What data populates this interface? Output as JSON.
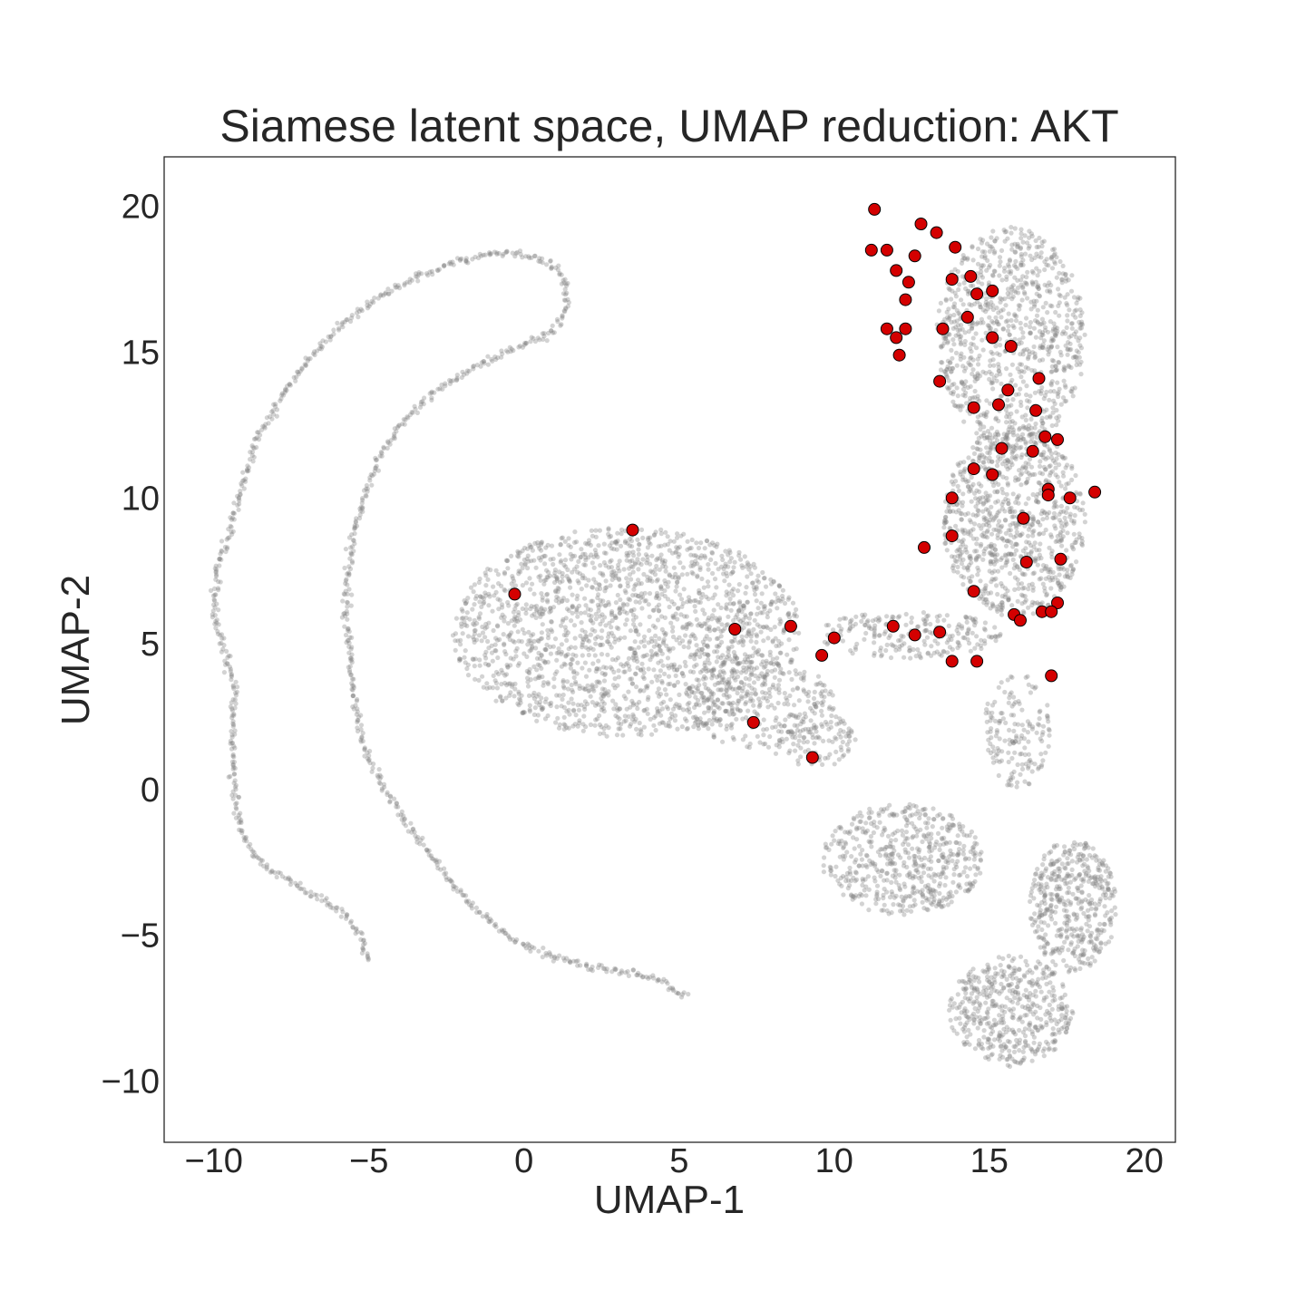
{
  "chart_data": {
    "type": "scatter",
    "title": "Siamese latent space, UMAP reduction: AKT",
    "xlabel": "UMAP-1",
    "ylabel": "UMAP-2",
    "xlim": [
      -11.6,
      21.0
    ],
    "ylim": [
      -12.1,
      21.7
    ],
    "xticks": [
      -10,
      -5,
      0,
      5,
      10,
      15,
      20
    ],
    "yticks": [
      -10,
      -5,
      0,
      5,
      10,
      15,
      20
    ],
    "xtick_labels": [
      "−10",
      "−5",
      "0",
      "5",
      "10",
      "15",
      "20"
    ],
    "ytick_labels": [
      "−10",
      "−5",
      "0",
      "5",
      "10",
      "15",
      "20"
    ],
    "grid": false,
    "background": {
      "color": "#808080",
      "opacity": 0.35,
      "description_points": "dense UMAP embedding of all compounds",
      "curves": [
        [
          [
            -5.0,
            -5.9
          ],
          [
            -5.2,
            -5.2
          ],
          [
            -5.5,
            -4.6
          ],
          [
            -6.0,
            -4.1
          ],
          [
            -7.3,
            -3.3
          ],
          [
            -8.3,
            -2.7
          ],
          [
            -8.9,
            -2.0
          ],
          [
            -9.2,
            -1.0
          ],
          [
            -9.4,
            0.5
          ],
          [
            -9.4,
            1.8
          ],
          [
            -9.3,
            3.3
          ],
          [
            -9.6,
            4.6
          ],
          [
            -9.9,
            5.5
          ],
          [
            -10.0,
            6.6
          ],
          [
            -9.9,
            7.6
          ],
          [
            -9.5,
            8.7
          ],
          [
            -9.2,
            10.0
          ],
          [
            -8.9,
            11.0
          ],
          [
            -8.6,
            12.1
          ],
          [
            -7.9,
            13.3
          ],
          [
            -7.0,
            14.7
          ],
          [
            -5.9,
            15.9
          ],
          [
            -4.8,
            16.8
          ],
          [
            -3.4,
            17.6
          ],
          [
            -2.1,
            18.1
          ],
          [
            -1.0,
            18.4
          ],
          [
            -0.5,
            18.4
          ]
        ],
        [
          [
            -0.5,
            18.4
          ],
          [
            0.3,
            18.3
          ],
          [
            0.9,
            18.0
          ],
          [
            1.3,
            17.6
          ],
          [
            1.4,
            16.8
          ],
          [
            1.2,
            16.1
          ],
          [
            0.6,
            15.5
          ],
          [
            -0.6,
            15.0
          ],
          [
            -1.6,
            14.5
          ],
          [
            -2.9,
            13.6
          ],
          [
            -4.0,
            12.5
          ],
          [
            -4.7,
            11.3
          ],
          [
            -5.1,
            10.2
          ],
          [
            -5.5,
            8.7
          ],
          [
            -5.7,
            7.3
          ],
          [
            -5.7,
            5.7
          ],
          [
            -5.6,
            4.3
          ],
          [
            -5.5,
            3.0
          ],
          [
            -5.2,
            1.5
          ],
          [
            -4.6,
            0.2
          ],
          [
            -3.7,
            -1.3
          ],
          [
            -2.7,
            -2.7
          ],
          [
            -1.7,
            -4.0
          ],
          [
            -0.4,
            -5.1
          ],
          [
            0.8,
            -5.7
          ],
          [
            2.3,
            -6.1
          ],
          [
            3.5,
            -6.3
          ],
          [
            4.5,
            -6.6
          ],
          [
            5.0,
            -7.0
          ],
          [
            5.3,
            -7.0
          ]
        ]
      ],
      "blobs": [
        {
          "cx": 3.3,
          "cy": 5.4,
          "rx": 5.6,
          "ry": 3.6,
          "count": 1900
        },
        {
          "cx": 7.6,
          "cy": 3.0,
          "rx": 2.4,
          "ry": 1.6,
          "count": 260
        },
        {
          "cx": 9.3,
          "cy": 1.7,
          "rx": 1.4,
          "ry": 1.0,
          "count": 110
        },
        {
          "cx": 15.7,
          "cy": 15.5,
          "rx": 2.4,
          "ry": 3.8,
          "count": 900
        },
        {
          "cx": 15.8,
          "cy": 9.2,
          "rx": 2.3,
          "ry": 3.3,
          "count": 900
        },
        {
          "cx": 12.4,
          "cy": 5.3,
          "rx": 3.0,
          "ry": 0.8,
          "count": 220
        },
        {
          "cx": 15.9,
          "cy": 2.0,
          "rx": 1.1,
          "ry": 2.0,
          "count": 160
        },
        {
          "cx": 12.2,
          "cy": -2.4,
          "rx": 2.6,
          "ry": 1.9,
          "count": 550
        },
        {
          "cx": 17.7,
          "cy": -4.0,
          "rx": 1.4,
          "ry": 2.3,
          "count": 450
        },
        {
          "cx": 15.7,
          "cy": -7.6,
          "rx": 2.0,
          "ry": 1.9,
          "count": 480
        }
      ]
    },
    "series": [
      {
        "color": "#d40000",
        "edgecolor": "#000000",
        "x": [
          11.3,
          12.8,
          13.3,
          13.9,
          11.2,
          11.7,
          12.6,
          12.0,
          12.4,
          13.8,
          14.4,
          14.6,
          15.1,
          12.3,
          11.7,
          12.3,
          12.0,
          13.5,
          14.3,
          15.1,
          15.7,
          12.1,
          13.4,
          16.6,
          15.6,
          14.5,
          15.3,
          16.5,
          16.8,
          17.2,
          15.4,
          16.4,
          14.5,
          15.1,
          16.9,
          16.9,
          17.6,
          18.4,
          13.8,
          16.1,
          13.8,
          12.9,
          16.2,
          17.3,
          14.5,
          17.2,
          16.7,
          15.8,
          17.0,
          16.0,
          11.9,
          12.6,
          13.4,
          14.6,
          13.8,
          17.0,
          -0.3,
          3.5,
          6.8,
          8.6,
          10.0,
          9.6,
          7.4,
          9.3
        ],
        "y": [
          19.9,
          19.4,
          19.1,
          18.6,
          18.5,
          18.5,
          18.3,
          17.8,
          17.4,
          17.5,
          17.6,
          17.0,
          17.1,
          16.8,
          15.8,
          15.8,
          15.5,
          15.8,
          16.2,
          15.5,
          15.2,
          14.9,
          14.0,
          14.1,
          13.7,
          13.1,
          13.2,
          13.0,
          12.1,
          12.0,
          11.7,
          11.6,
          11.0,
          10.8,
          10.3,
          10.1,
          10.0,
          10.2,
          10.0,
          9.3,
          8.7,
          8.3,
          7.8,
          7.9,
          6.8,
          6.4,
          6.1,
          6.0,
          6.1,
          5.8,
          5.6,
          5.3,
          5.4,
          4.4,
          4.4,
          3.9,
          6.7,
          8.9,
          5.5,
          5.6,
          5.2,
          4.6,
          2.3,
          1.1
        ]
      }
    ]
  }
}
